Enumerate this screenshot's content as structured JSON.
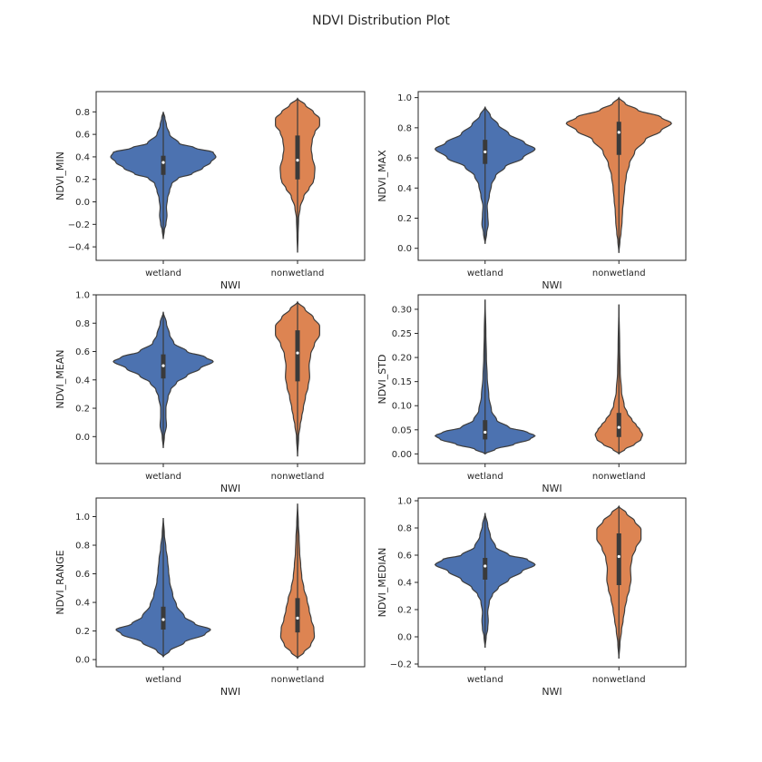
{
  "title": "NDVI Distribution Plot",
  "colors": {
    "wetland": "#4c72b0",
    "nonwetland": "#dd8452",
    "edge": "#3d3d3d",
    "box": "#3a3a3a",
    "median": "#ffffff"
  },
  "chart_data": [
    {
      "type": "violin",
      "xlabel": "NWI",
      "ylabel": "NDVI_MIN",
      "categories": [
        "wetland",
        "nonwetland"
      ],
      "ylim": [
        -0.52,
        0.98
      ],
      "yticks": [
        "−0.4",
        "−0.2",
        "0.0",
        "0.2",
        "0.4",
        "0.6",
        "0.8"
      ],
      "ytick_values": [
        -0.4,
        -0.2,
        0.0,
        0.2,
        0.4,
        0.6,
        0.8
      ],
      "series": [
        {
          "name": "wetland",
          "min": -0.33,
          "max": 0.8,
          "q1": 0.24,
          "median": 0.35,
          "q3": 0.41,
          "profile": [
            [
              -0.33,
              0
            ],
            [
              -0.25,
              0.02
            ],
            [
              -0.2,
              0.05
            ],
            [
              -0.12,
              0.07
            ],
            [
              -0.05,
              0.06
            ],
            [
              0.03,
              0.08
            ],
            [
              0.1,
              0.12
            ],
            [
              0.16,
              0.16
            ],
            [
              0.21,
              0.28
            ],
            [
              0.25,
              0.55
            ],
            [
              0.3,
              0.75
            ],
            [
              0.35,
              0.9
            ],
            [
              0.4,
              1.0
            ],
            [
              0.44,
              0.95
            ],
            [
              0.48,
              0.6
            ],
            [
              0.52,
              0.3
            ],
            [
              0.6,
              0.12
            ],
            [
              0.68,
              0.06
            ],
            [
              0.75,
              0.03
            ],
            [
              0.8,
              0
            ]
          ]
        },
        {
          "name": "nonwetland",
          "min": -0.45,
          "max": 0.92,
          "q1": 0.2,
          "median": 0.37,
          "q3": 0.59,
          "profile": [
            [
              -0.45,
              0
            ],
            [
              -0.3,
              0.01
            ],
            [
              -0.15,
              0.02
            ],
            [
              -0.05,
              0.05
            ],
            [
              0.05,
              0.12
            ],
            [
              0.12,
              0.22
            ],
            [
              0.18,
              0.3
            ],
            [
              0.22,
              0.32
            ],
            [
              0.3,
              0.33
            ],
            [
              0.4,
              0.28
            ],
            [
              0.47,
              0.26
            ],
            [
              0.55,
              0.28
            ],
            [
              0.62,
              0.33
            ],
            [
              0.68,
              0.42
            ],
            [
              0.74,
              0.42
            ],
            [
              0.8,
              0.3
            ],
            [
              0.86,
              0.15
            ],
            [
              0.92,
              0
            ]
          ]
        }
      ]
    },
    {
      "type": "violin",
      "xlabel": "NWI",
      "ylabel": "NDVI_MAX",
      "categories": [
        "wetland",
        "nonwetland"
      ],
      "ylim": [
        -0.08,
        1.04
      ],
      "yticks": [
        "0.0",
        "0.2",
        "0.4",
        "0.6",
        "0.8",
        "1.0"
      ],
      "ytick_values": [
        0.0,
        0.2,
        0.4,
        0.6,
        0.8,
        1.0
      ],
      "series": [
        {
          "name": "wetland",
          "min": 0.03,
          "max": 0.94,
          "q1": 0.56,
          "median": 0.64,
          "q3": 0.72,
          "profile": [
            [
              0.03,
              0
            ],
            [
              0.1,
              0.03
            ],
            [
              0.16,
              0.06
            ],
            [
              0.22,
              0.05
            ],
            [
              0.28,
              0.04
            ],
            [
              0.35,
              0.08
            ],
            [
              0.42,
              0.12
            ],
            [
              0.48,
              0.2
            ],
            [
              0.54,
              0.38
            ],
            [
              0.6,
              0.72
            ],
            [
              0.66,
              0.95
            ],
            [
              0.7,
              0.75
            ],
            [
              0.76,
              0.45
            ],
            [
              0.82,
              0.25
            ],
            [
              0.88,
              0.1
            ],
            [
              0.94,
              0
            ]
          ]
        },
        {
          "name": "nonwetland",
          "min": -0.03,
          "max": 1.0,
          "q1": 0.62,
          "median": 0.77,
          "q3": 0.84,
          "profile": [
            [
              -0.03,
              0
            ],
            [
              0.05,
              0.02
            ],
            [
              0.1,
              0.04
            ],
            [
              0.18,
              0.06
            ],
            [
              0.25,
              0.07
            ],
            [
              0.32,
              0.09
            ],
            [
              0.4,
              0.11
            ],
            [
              0.48,
              0.14
            ],
            [
              0.56,
              0.2
            ],
            [
              0.64,
              0.3
            ],
            [
              0.72,
              0.5
            ],
            [
              0.78,
              0.8
            ],
            [
              0.83,
              1.0
            ],
            [
              0.87,
              0.8
            ],
            [
              0.92,
              0.35
            ],
            [
              0.96,
              0.12
            ],
            [
              1.0,
              0
            ]
          ]
        }
      ]
    },
    {
      "type": "violin",
      "xlabel": "NWI",
      "ylabel": "NDVI_MEAN",
      "categories": [
        "wetland",
        "nonwetland"
      ],
      "ylim": [
        -0.19,
        1.0
      ],
      "yticks": [
        "0.0",
        "0.2",
        "0.4",
        "0.6",
        "0.8",
        "1.0"
      ],
      "ytick_values": [
        0.0,
        0.2,
        0.4,
        0.6,
        0.8,
        1.0
      ],
      "series": [
        {
          "name": "wetland",
          "min": -0.08,
          "max": 0.88,
          "q1": 0.41,
          "median": 0.5,
          "q3": 0.58,
          "profile": [
            [
              -0.08,
              0
            ],
            [
              0.0,
              0.02
            ],
            [
              0.08,
              0.06
            ],
            [
              0.14,
              0.05
            ],
            [
              0.2,
              0.05
            ],
            [
              0.28,
              0.09
            ],
            [
              0.33,
              0.14
            ],
            [
              0.38,
              0.25
            ],
            [
              0.43,
              0.45
            ],
            [
              0.48,
              0.7
            ],
            [
              0.53,
              0.95
            ],
            [
              0.56,
              0.8
            ],
            [
              0.6,
              0.45
            ],
            [
              0.66,
              0.2
            ],
            [
              0.72,
              0.12
            ],
            [
              0.8,
              0.06
            ],
            [
              0.88,
              0
            ]
          ]
        },
        {
          "name": "nonwetland",
          "min": -0.14,
          "max": 0.95,
          "q1": 0.39,
          "median": 0.59,
          "q3": 0.75,
          "profile": [
            [
              -0.14,
              0
            ],
            [
              0.0,
              0.02
            ],
            [
              0.08,
              0.05
            ],
            [
              0.14,
              0.08
            ],
            [
              0.2,
              0.11
            ],
            [
              0.28,
              0.15
            ],
            [
              0.35,
              0.2
            ],
            [
              0.42,
              0.23
            ],
            [
              0.5,
              0.22
            ],
            [
              0.58,
              0.25
            ],
            [
              0.65,
              0.32
            ],
            [
              0.72,
              0.42
            ],
            [
              0.78,
              0.42
            ],
            [
              0.84,
              0.3
            ],
            [
              0.9,
              0.14
            ],
            [
              0.95,
              0
            ]
          ]
        }
      ]
    },
    {
      "type": "violin",
      "xlabel": "NWI",
      "ylabel": "NDVI_STD",
      "categories": [
        "wetland",
        "nonwetland"
      ],
      "ylim": [
        -0.02,
        0.33
      ],
      "yticks": [
        "0.00",
        "0.05",
        "0.10",
        "0.15",
        "0.20",
        "0.25",
        "0.30"
      ],
      "ytick_values": [
        0.0,
        0.05,
        0.1,
        0.15,
        0.2,
        0.25,
        0.3
      ],
      "series": [
        {
          "name": "wetland",
          "min": 0.0,
          "max": 0.32,
          "q1": 0.03,
          "median": 0.045,
          "q3": 0.07,
          "profile": [
            [
              0.0,
              0
            ],
            [
              0.01,
              0.2
            ],
            [
              0.02,
              0.55
            ],
            [
              0.03,
              0.85
            ],
            [
              0.038,
              0.95
            ],
            [
              0.045,
              0.8
            ],
            [
              0.055,
              0.45
            ],
            [
              0.07,
              0.22
            ],
            [
              0.09,
              0.12
            ],
            [
              0.12,
              0.07
            ],
            [
              0.16,
              0.04
            ],
            [
              0.2,
              0.025
            ],
            [
              0.25,
              0.015
            ],
            [
              0.32,
              0
            ]
          ]
        },
        {
          "name": "nonwetland",
          "min": 0.0,
          "max": 0.31,
          "q1": 0.035,
          "median": 0.055,
          "q3": 0.085,
          "profile": [
            [
              0.0,
              0
            ],
            [
              0.01,
              0.12
            ],
            [
              0.02,
              0.3
            ],
            [
              0.03,
              0.42
            ],
            [
              0.04,
              0.45
            ],
            [
              0.05,
              0.4
            ],
            [
              0.06,
              0.33
            ],
            [
              0.07,
              0.25
            ],
            [
              0.085,
              0.16
            ],
            [
              0.1,
              0.1
            ],
            [
              0.13,
              0.05
            ],
            [
              0.17,
              0.025
            ],
            [
              0.22,
              0.015
            ],
            [
              0.31,
              0
            ]
          ]
        }
      ]
    },
    {
      "type": "violin",
      "xlabel": "NWI",
      "ylabel": "NDVI_RANGE",
      "categories": [
        "wetland",
        "nonwetland"
      ],
      "ylim": [
        -0.05,
        1.13
      ],
      "yticks": [
        "0.0",
        "0.2",
        "0.4",
        "0.6",
        "0.8",
        "1.0"
      ],
      "ytick_values": [
        0.0,
        0.2,
        0.4,
        0.6,
        0.8,
        1.0
      ],
      "series": [
        {
          "name": "wetland",
          "min": 0.02,
          "max": 0.99,
          "q1": 0.21,
          "median": 0.28,
          "q3": 0.37,
          "profile": [
            [
              0.02,
              0
            ],
            [
              0.06,
              0.12
            ],
            [
              0.12,
              0.4
            ],
            [
              0.18,
              0.8
            ],
            [
              0.21,
              0.9
            ],
            [
              0.25,
              0.6
            ],
            [
              0.3,
              0.4
            ],
            [
              0.38,
              0.25
            ],
            [
              0.45,
              0.18
            ],
            [
              0.55,
              0.12
            ],
            [
              0.62,
              0.1
            ],
            [
              0.7,
              0.08
            ],
            [
              0.78,
              0.05
            ],
            [
              0.88,
              0.02
            ],
            [
              0.99,
              0
            ]
          ]
        },
        {
          "name": "nonwetland",
          "min": 0.01,
          "max": 1.09,
          "q1": 0.19,
          "median": 0.29,
          "q3": 0.43,
          "profile": [
            [
              0.01,
              0
            ],
            [
              0.05,
              0.12
            ],
            [
              0.1,
              0.25
            ],
            [
              0.16,
              0.32
            ],
            [
              0.22,
              0.31
            ],
            [
              0.28,
              0.26
            ],
            [
              0.35,
              0.22
            ],
            [
              0.42,
              0.18
            ],
            [
              0.5,
              0.12
            ],
            [
              0.58,
              0.08
            ],
            [
              0.66,
              0.06
            ],
            [
              0.75,
              0.04
            ],
            [
              0.85,
              0.03
            ],
            [
              0.95,
              0.015
            ],
            [
              1.09,
              0
            ]
          ]
        }
      ]
    },
    {
      "type": "violin",
      "xlabel": "NWI",
      "ylabel": "NDVI_MEDIAN",
      "categories": [
        "wetland",
        "nonwetland"
      ],
      "ylim": [
        -0.22,
        1.02
      ],
      "yticks": [
        "−0.2",
        "0.0",
        "0.2",
        "0.4",
        "0.6",
        "0.8",
        "1.0"
      ],
      "ytick_values": [
        -0.2,
        0.0,
        0.2,
        0.4,
        0.6,
        0.8,
        1.0
      ],
      "series": [
        {
          "name": "wetland",
          "min": -0.08,
          "max": 0.91,
          "q1": 0.42,
          "median": 0.52,
          "q3": 0.58,
          "profile": [
            [
              -0.08,
              0
            ],
            [
              0.0,
              0.02
            ],
            [
              0.06,
              0.05
            ],
            [
              0.12,
              0.06
            ],
            [
              0.18,
              0.05
            ],
            [
              0.26,
              0.08
            ],
            [
              0.31,
              0.14
            ],
            [
              0.36,
              0.25
            ],
            [
              0.42,
              0.45
            ],
            [
              0.48,
              0.7
            ],
            [
              0.53,
              0.95
            ],
            [
              0.57,
              0.8
            ],
            [
              0.6,
              0.45
            ],
            [
              0.66,
              0.2
            ],
            [
              0.74,
              0.1
            ],
            [
              0.82,
              0.05
            ],
            [
              0.91,
              0
            ]
          ]
        },
        {
          "name": "nonwetland",
          "min": -0.16,
          "max": 0.96,
          "q1": 0.38,
          "median": 0.59,
          "q3": 0.76,
          "profile": [
            [
              -0.16,
              0
            ],
            [
              -0.05,
              0.02
            ],
            [
              0.05,
              0.05
            ],
            [
              0.12,
              0.08
            ],
            [
              0.2,
              0.11
            ],
            [
              0.28,
              0.15
            ],
            [
              0.35,
              0.2
            ],
            [
              0.42,
              0.23
            ],
            [
              0.5,
              0.22
            ],
            [
              0.58,
              0.25
            ],
            [
              0.65,
              0.32
            ],
            [
              0.72,
              0.42
            ],
            [
              0.79,
              0.42
            ],
            [
              0.85,
              0.3
            ],
            [
              0.91,
              0.14
            ],
            [
              0.96,
              0
            ]
          ]
        }
      ]
    }
  ]
}
